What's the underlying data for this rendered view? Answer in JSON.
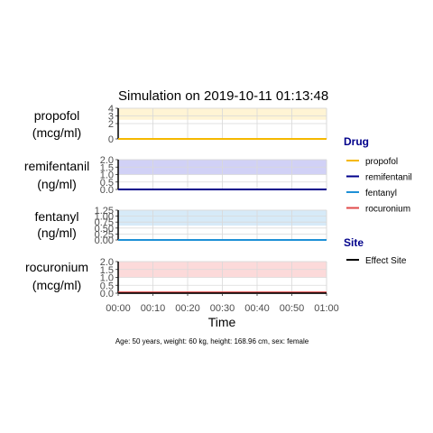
{
  "chart_data": {
    "type": "line",
    "title": "Simulation on 2019-10-11 01:13:48",
    "xlabel": "Time",
    "caption": "Age: 50 years, weight: 60 kg, height: 168.96 cm, sex: female",
    "x_ticks": [
      "00:00",
      "00:10",
      "00:20",
      "00:30",
      "00:40",
      "00:50",
      "01:00"
    ],
    "xlim": [
      0,
      60
    ],
    "panels": [
      {
        "drug": "propofol",
        "label_lines": [
          "propofol",
          "(mcg/ml)"
        ],
        "ylim": [
          0,
          4
        ],
        "y_ticks": [
          0,
          2,
          3,
          4
        ],
        "y_tick_labels": [
          "0",
          "2",
          "3",
          "4"
        ],
        "band": [
          2.5,
          4
        ],
        "band_color": "#fff2cc",
        "line_color": "#f5b800",
        "series": [
          {
            "x": [
              0,
              60
            ],
            "y": [
              0,
              0
            ]
          }
        ],
        "effect_site": {
          "x": [
            0,
            60
          ],
          "y": [
            0,
            0
          ]
        }
      },
      {
        "drug": "remifentanil",
        "label_lines": [
          "remifentanil",
          "(ng/ml)"
        ],
        "ylim": [
          0,
          2
        ],
        "y_ticks": [
          0,
          0.5,
          1,
          1.5,
          2
        ],
        "y_tick_labels": [
          "0.0",
          "0.5",
          "1.0",
          "1.5",
          "2.0"
        ],
        "band": [
          1,
          2
        ],
        "band_color": "#c9c9f5",
        "line_color": "#00008b",
        "series": [
          {
            "x": [
              0,
              60
            ],
            "y": [
              0,
              0
            ]
          }
        ],
        "effect_site": {
          "x": [
            0,
            60
          ],
          "y": [
            0,
            0
          ]
        }
      },
      {
        "drug": "fentanyl",
        "label_lines": [
          "fentanyl",
          "(ng/ml)"
        ],
        "ylim": [
          0,
          1.25
        ],
        "y_ticks": [
          0,
          0.25,
          0.5,
          0.75,
          1,
          1.25
        ],
        "y_tick_labels": [
          "0.00",
          "0.25",
          "0.50",
          "0.75",
          "1.00",
          "1.25"
        ],
        "band": [
          0.6,
          1.25
        ],
        "band_color": "#cfe6f7",
        "line_color": "#1e90d6",
        "series": [
          {
            "x": [
              0,
              60
            ],
            "y": [
              0,
              0
            ]
          }
        ],
        "effect_site": {
          "x": [
            0,
            60
          ],
          "y": [
            0,
            0
          ]
        }
      },
      {
        "drug": "rocuronium",
        "label_lines": [
          "rocuronium",
          "(mcg/ml)"
        ],
        "ylim": [
          0,
          2
        ],
        "y_ticks": [
          0,
          0.5,
          1,
          1.5,
          2
        ],
        "y_tick_labels": [
          "0.0",
          "0.5",
          "1.0",
          "1.5",
          "2.0"
        ],
        "band": [
          1,
          2
        ],
        "band_color": "#fbd4d4",
        "line_color": "#e04848",
        "series": [
          {
            "x": [
              0,
              60
            ],
            "y": [
              0.05,
              0.05
            ]
          }
        ],
        "effect_site": {
          "x": [
            0,
            60
          ],
          "y": [
            0,
            0
          ]
        }
      }
    ],
    "legend": {
      "drug_title": "Drug",
      "drug_items": [
        {
          "name": "propofol",
          "color": "#f5b800"
        },
        {
          "name": "remifentanil",
          "color": "#00008b"
        },
        {
          "name": "fentanyl",
          "color": "#1e90d6"
        },
        {
          "name": "rocuronium",
          "color": "#e04848"
        }
      ],
      "site_title": "Site",
      "site_items": [
        {
          "name": "Effect Site",
          "color": "#000000"
        }
      ]
    }
  }
}
